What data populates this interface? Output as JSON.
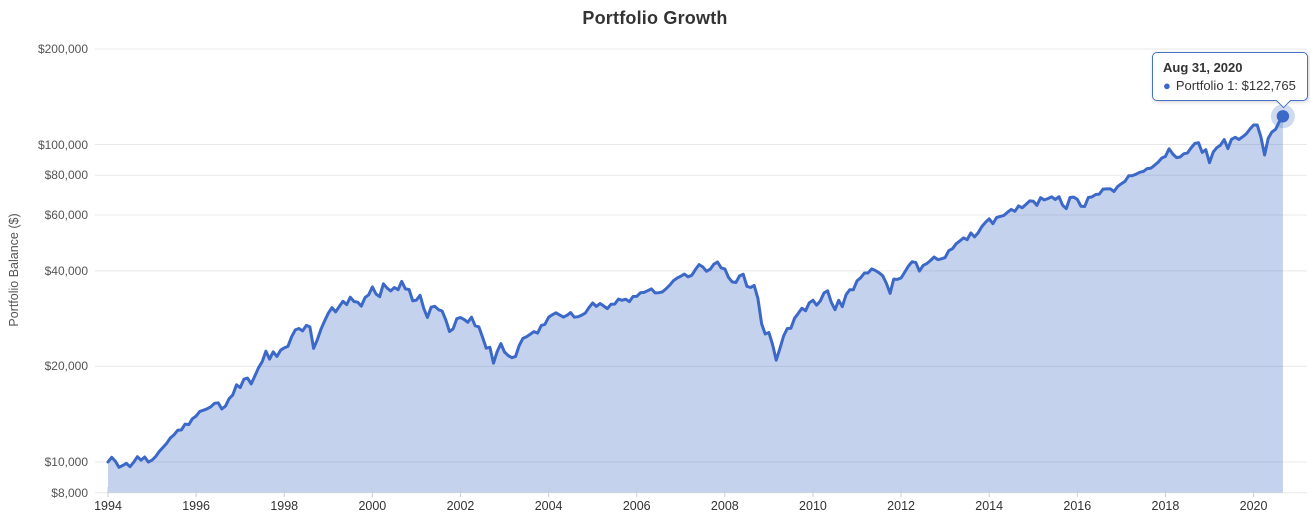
{
  "title": "Portfolio Growth",
  "tooltip": {
    "date": "Aug 31, 2020",
    "series": "Portfolio 1",
    "value": "$122,765",
    "line": "Portfolio 1: $122,765",
    "bullet": "●"
  },
  "colors": {
    "line": "#3C68C8",
    "fill": "rgba(62,106,200,0.30)",
    "halo": "rgba(62,106,200,0.25)",
    "grid": "#E8E8E8",
    "tick": "#C5CEDE",
    "tooltip_border": "#4572C4",
    "title_text": "#333333",
    "axis_text": "#555555"
  },
  "chart_data": {
    "type": "area",
    "title": "Portfolio Growth",
    "xlabel": "",
    "ylabel": "Portfolio Balance ($)",
    "y_scale": "log",
    "ylim": [
      8000,
      200000
    ],
    "grid": "horizontal",
    "legend": "none",
    "y_ticks": [
      {
        "label": "$200,000",
        "value": 200000
      },
      {
        "label": "$100,000",
        "value": 100000
      },
      {
        "label": "$80,000",
        "value": 80000
      },
      {
        "label": "$60,000",
        "value": 60000
      },
      {
        "label": "$40,000",
        "value": 40000
      },
      {
        "label": "$20,000",
        "value": 20000
      },
      {
        "label": "$10,000",
        "value": 10000
      },
      {
        "label": "$8,000",
        "value": 8000
      }
    ],
    "x_tick_years": [
      1994,
      1996,
      1998,
      2000,
      2002,
      2004,
      2006,
      2008,
      2010,
      2012,
      2014,
      2016,
      2018,
      2020
    ],
    "series": [
      {
        "name": "Portfolio 1",
        "frequency": "monthly",
        "x_start_year": 1994,
        "end_label": "Aug 31, 2020",
        "end_value": 122765,
        "values": [
          10000,
          10340,
          10060,
          9620,
          9745,
          9905,
          9660,
          9980,
          10390,
          10135,
          10365,
          9990,
          10135,
          10400,
          10805,
          11125,
          11450,
          11910,
          12185,
          12590,
          12620,
          13155,
          13110,
          13685,
          13950,
          14425,
          14560,
          14700,
          14915,
          15300,
          15360,
          14680,
          14990,
          15835,
          16270,
          17500,
          17155,
          18225,
          18370,
          17615,
          18665,
          19800,
          20690,
          22335,
          21085,
          22240,
          21495,
          22490,
          22875,
          23130,
          24795,
          26065,
          26330,
          25875,
          26925,
          26640,
          22790,
          24250,
          26220,
          27810,
          29410,
          30640,
          29690,
          30875,
          32070,
          31315,
          33050,
          32020,
          31860,
          30985,
          32945,
          33615,
          35595,
          33805,
          33165,
          36410,
          35315,
          34590,
          35440,
          34885,
          37050,
          35095,
          34945,
          32190,
          32350,
          33500,
          30445,
          28515,
          30730,
          30935,
          30185,
          29890,
          28020,
          25755,
          26245,
          28260,
          28510,
          28095,
          27550,
          28585,
          26855,
          26655,
          24755,
          22825,
          22975,
          20475,
          22280,
          23590,
          22205,
          21625,
          21300,
          21505,
          23275,
          24500,
          24815,
          25250,
          25740,
          25465,
          26905,
          27140,
          28565,
          29090,
          29495,
          29050,
          28595,
          28985,
          29550,
          28570,
          28685,
          28995,
          29440,
          30630,
          31675,
          30905,
          31555,
          31000,
          30410,
          31375,
          31420,
          32590,
          32295,
          32555,
          32010,
          33220,
          33235,
          34115,
          34205,
          34630,
          35095,
          34085,
          34130,
          34340,
          35155,
          36060,
          37235,
          37945,
          38475,
          39055,
          38290,
          38720,
          40435,
          41845,
          41150,
          39875,
          40470,
          41985,
          42650,
          40865,
          40585,
          38150,
          36910,
          36750,
          38540,
          39040,
          35750,
          35450,
          35960,
          32755,
          27255,
          25300,
          25570,
          23415,
          20925,
          22755,
          24935,
          26330,
          26380,
          28375,
          29400,
          30495,
          29930,
          31725,
          32340,
          31175,
          32140,
          34080,
          34615,
          31850,
          30185,
          32300,
          30840,
          33590,
          34865,
          34865,
          37195,
          38075,
          39380,
          39395,
          40560,
          40100,
          39430,
          38630,
          36530,
          33965,
          37675,
          37590,
          37975,
          39675,
          41390,
          42750,
          42480,
          39930,
          41575,
          42155,
          43105,
          44215,
          43400,
          43650,
          44050,
          46330,
          46960,
          48720,
          49660,
          50820,
          50140,
          52690,
          51165,
          52770,
          55195,
          56875,
          58315,
          56300,
          58875,
          59370,
          59810,
          61215,
          62480,
          61615,
          64080,
          63180,
          64725,
          66465,
          66300,
          64310,
          68005,
          66930,
          67570,
          68440,
          67115,
          68520,
          64385,
          62790,
          68090,
          68290,
          67215,
          63880,
          63795,
          68120,
          68385,
          69615,
          69795,
          72370,
          72470,
          72475,
          71155,
          73790,
          75250,
          76675,
          79720,
          79815,
          80635,
          81770,
          82280,
          83970,
          84230,
          85965,
          87975,
          90670,
          91680,
          96930,
          93355,
          90980,
          91330,
          93530,
          94105,
          97605,
          100785,
          101360,
          94430,
          96355,
          87655,
          94680,
          97720,
          99620,
          103655,
          97070,
          103915,
          105410,
          103740,
          105680,
          107970,
          111890,
          115265,
          115220,
          105735,
          92675,
          104555,
          109535,
          111715,
          118015,
          122765
        ]
      }
    ]
  }
}
